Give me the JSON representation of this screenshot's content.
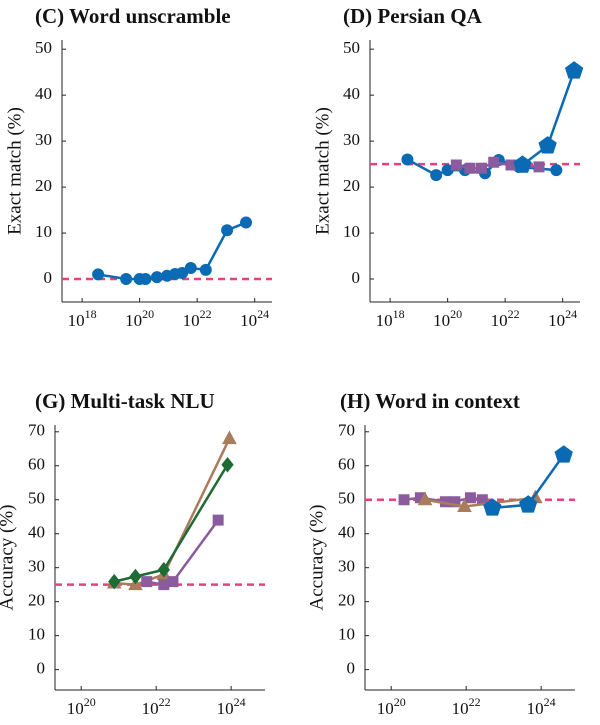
{
  "chart_data": [
    {
      "type": "line",
      "title": "(C) Word unscramble",
      "ylabel": "Exact match (%)",
      "log_x": true,
      "xlim": [
        2e+17,
        4e+24
      ],
      "ylim": [
        -5,
        52
      ],
      "xticks": [
        {
          "value": 1e+18,
          "label": "10^18"
        },
        {
          "value": 1e+20,
          "label": "10^20"
        },
        {
          "value": 1e+22,
          "label": "10^22"
        },
        {
          "value": 1e+24,
          "label": "10^24"
        }
      ],
      "yticks": [
        0,
        10,
        20,
        30,
        40,
        50
      ],
      "baseline": 0,
      "baseline_color": "#e8417c",
      "series": [
        {
          "color": "#0a6ab3",
          "marker": "circle",
          "x": [
            3.6e+18,
            3.4e+19,
            1e+20,
            1.6e+20,
            4e+20,
            9e+20,
            1.7e+21,
            3e+21,
            6e+21,
            2e+22,
            1.1e+23,
            5e+23
          ],
          "values": [
            1,
            0,
            0,
            0,
            0.4,
            0.7,
            1.1,
            1.3,
            2.4,
            2,
            10.6,
            12.3
          ]
        }
      ]
    },
    {
      "type": "line",
      "title": "(D) Persian QA",
      "ylabel": "Exact match (%)",
      "log_x": true,
      "xlim": [
        2e+17,
        4e+24
      ],
      "ylim": [
        -5,
        52
      ],
      "xticks": [
        {
          "value": 1e+18,
          "label": "10^18"
        },
        {
          "value": 1e+20,
          "label": "10^20"
        },
        {
          "value": 1e+22,
          "label": "10^22"
        },
        {
          "value": 1e+24,
          "label": "10^24"
        }
      ],
      "yticks": [
        0,
        10,
        20,
        30,
        40,
        50
      ],
      "baseline": 25,
      "baseline_color": "#e8417c",
      "series": [
        {
          "color": "#0a6ab3",
          "marker": "circle",
          "x": [
            4e+18,
            4e+19,
            1e+20,
            4e+20,
            2e+21,
            6e+21,
            3e+22,
            6e+23
          ],
          "values": [
            26,
            22.6,
            23.7,
            23.7,
            23,
            25.9,
            24.4,
            23.7
          ]
        },
        {
          "color": "#8a5c9e",
          "marker": "square",
          "x": [
            2e+20,
            6e+20,
            1.5e+21,
            4e+21,
            1.6e+22,
            1.5e+23
          ],
          "values": [
            24.8,
            24.1,
            24.1,
            25.4,
            24.8,
            24.4
          ]
        },
        {
          "color": "#0a6ab3",
          "marker": "pentagon",
          "x": [
            4e+22,
            3e+23,
            2.5e+24
          ],
          "values": [
            24.8,
            29,
            45.3
          ]
        }
      ]
    },
    {
      "type": "line",
      "title": "(G) Multi-task NLU",
      "ylabel": "Accuracy (%)",
      "log_x": true,
      "xlim": [
        2e+19,
        8e+24
      ],
      "ylim": [
        -6,
        72
      ],
      "xticks": [
        {
          "value": 1e+20,
          "label": "10^20"
        },
        {
          "value": 1e+22,
          "label": "10^22"
        },
        {
          "value": 1e+24,
          "label": "10^24"
        }
      ],
      "yticks": [
        0,
        10,
        20,
        30,
        40,
        50,
        60,
        70
      ],
      "baseline": 25,
      "baseline_color": "#e8417c",
      "series": [
        {
          "color": "#a97c5c",
          "marker": "triangle",
          "x": [
            7.6e+20,
            2.8e+21,
            1.6e+22,
            9e+23
          ],
          "values": [
            25.5,
            25,
            28,
            68
          ]
        },
        {
          "color": "#8a5c9e",
          "marker": "square",
          "x": [
            5.6e+21,
            1.6e+22,
            2.8e+22,
            4.5e+23
          ],
          "values": [
            25.9,
            25,
            25.9,
            44
          ]
        },
        {
          "color": "#1e6b35",
          "marker": "diamond",
          "x": [
            7.6e+20,
            2.8e+21,
            1.6e+22,
            8e+23
          ],
          "values": [
            25.9,
            27.4,
            29.4,
            60.3
          ]
        }
      ]
    },
    {
      "type": "line",
      "title": "(H) Word in context",
      "ylabel": "Accuracy (%)",
      "log_x": true,
      "xlim": [
        2e+19,
        8e+24
      ],
      "ylim": [
        -6,
        72
      ],
      "xticks": [
        {
          "value": 1e+20,
          "label": "10^20"
        },
        {
          "value": 1e+22,
          "label": "10^22"
        },
        {
          "value": 1e+24,
          "label": "10^24"
        }
      ],
      "yticks": [
        0,
        10,
        20,
        30,
        40,
        50,
        60,
        70
      ],
      "baseline": 50,
      "baseline_color": "#e8417c",
      "series": [
        {
          "color": "#8a5c9e",
          "marker": "square",
          "x": [
            2.2e+20,
            6e+20,
            2.8e+21,
            5e+21,
            1.3e+22,
            2.7e+22
          ],
          "values": [
            50,
            50.6,
            49.4,
            49.4,
            50.6,
            50
          ]
        },
        {
          "color": "#a97c5c",
          "marker": "triangle",
          "x": [
            8e+20,
            9e+21,
            7e+23
          ],
          "values": [
            50,
            48,
            50.6
          ]
        },
        {
          "color": "#0a6ab3",
          "marker": "pentagon",
          "x": [
            5e+22,
            4.5e+23,
            4e+24
          ],
          "values": [
            47.6,
            48.5,
            63.2
          ]
        }
      ]
    }
  ]
}
